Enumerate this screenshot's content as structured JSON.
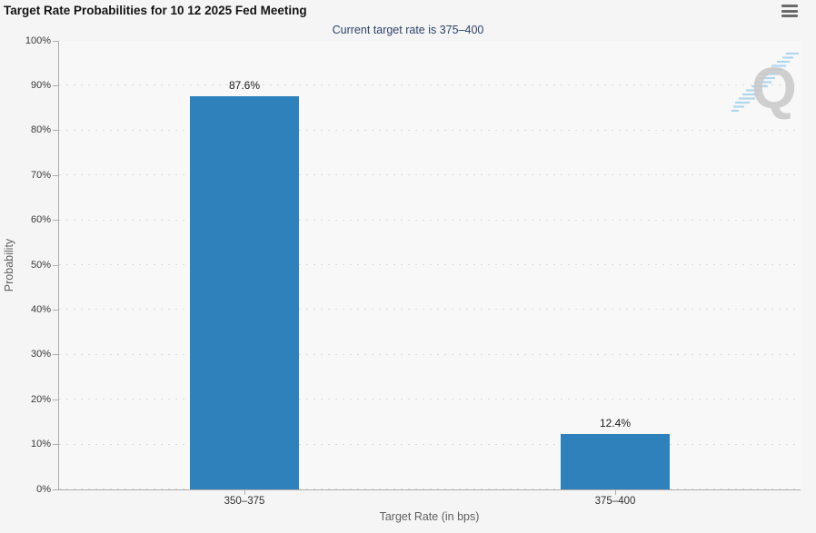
{
  "chart_data": {
    "type": "bar",
    "title": "Target Rate Probabilities for 10 12 2025 Fed Meeting",
    "subtitle": "Current target rate is 375–400",
    "categories": [
      "350–375",
      "375–400"
    ],
    "values": [
      87.6,
      12.4
    ],
    "value_labels": [
      "87.6%",
      "12.4%"
    ],
    "xlabel": "Target Rate (in bps)",
    "ylabel": "Probability",
    "ylim": [
      0,
      100
    ],
    "y_tick_labels": [
      "0%",
      "10%",
      "20%",
      "30%",
      "40%",
      "50%",
      "60%",
      "70%",
      "80%",
      "90%",
      "100%"
    ],
    "grid": "horizontal-dotted",
    "legend": "none",
    "bar_color": "#2e81ba"
  },
  "header": {
    "menu_icon": "hamburger-menu-icon"
  },
  "watermark": {
    "name": "quikstrike-logo",
    "letter": "Q"
  },
  "colors": {
    "bar": "#2e81ba",
    "subtitle_text": "#2d4368",
    "background": "#f5f5f5",
    "plot_background": "#f8f8f8",
    "grid": "#d9d9d9",
    "axis": "#aeaeae"
  }
}
